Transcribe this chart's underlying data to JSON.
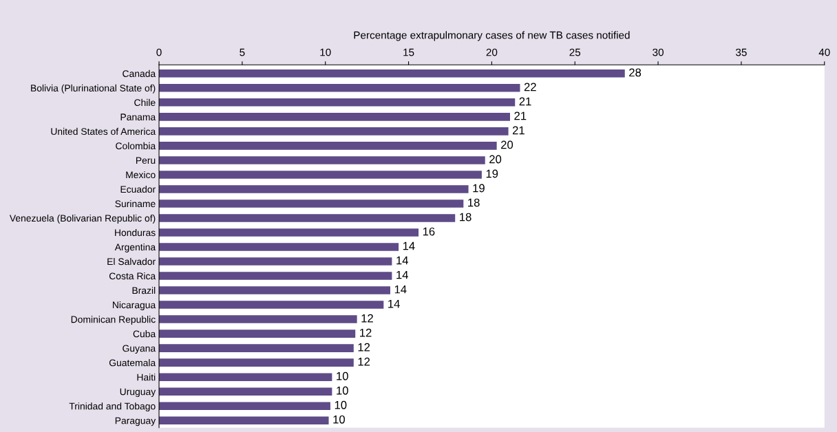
{
  "chart_data": {
    "type": "bar",
    "orientation": "horizontal",
    "xlabel": "Percentage extrapulmonary cases of new TB cases notified",
    "categories": [
      "Canada",
      "Bolivia (Plurinational State of)",
      "Chile",
      "Panama",
      "United States of America",
      "Colombia",
      "Peru",
      "Mexico",
      "Ecuador",
      "Suriname",
      "Venezuela (Bolivarian Republic of)",
      "Honduras",
      "Argentina",
      "El Salvador",
      "Costa Rica",
      "Brazil",
      "Nicaragua",
      "Dominican Republic",
      "Cuba",
      "Guyana",
      "Guatemala",
      "Haiti",
      "Uruguay",
      "Trinidad and Tobago",
      "Paraguay"
    ],
    "values": [
      28.0,
      21.7,
      21.4,
      21.1,
      21.0,
      20.3,
      19.6,
      19.4,
      18.6,
      18.3,
      17.8,
      15.6,
      14.4,
      14.0,
      14.0,
      13.9,
      13.5,
      11.9,
      11.8,
      11.7,
      11.7,
      10.4,
      10.4,
      10.3,
      10.2
    ],
    "value_labels": [
      "28",
      "22",
      "21",
      "21",
      "21",
      "20",
      "20",
      "19",
      "19",
      "18",
      "18",
      "16",
      "14",
      "14",
      "14",
      "14",
      "14",
      "12",
      "12",
      "12",
      "12",
      "10",
      "10",
      "10",
      "10"
    ],
    "color": "#5e4b87",
    "xlim": [
      0,
      40
    ],
    "xticks": [
      0,
      5,
      10,
      15,
      20,
      25,
      30,
      35,
      40
    ],
    "grid": false,
    "legend": false
  }
}
